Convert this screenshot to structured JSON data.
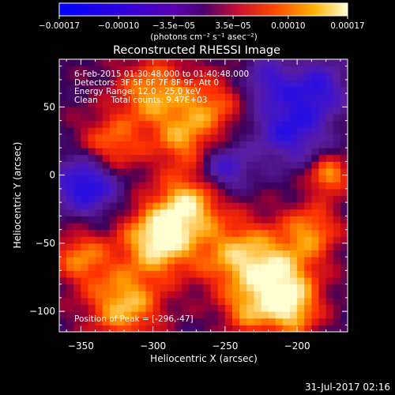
{
  "chart_data": {
    "type": "heatmap",
    "title": "Reconstructed RHESSI Image",
    "xlabel": "Heliocentric X (arcsec)",
    "ylabel": "Heliocentric Y (arcsec)",
    "xlim": [
      -365,
      -165
    ],
    "ylim": [
      -115,
      85
    ],
    "x_ticks": [
      -350,
      -300,
      -250,
      -200
    ],
    "x_tick_labels": [
      "−350",
      "−300",
      "−250",
      "−200"
    ],
    "y_ticks": [
      -100,
      -50,
      0,
      50
    ],
    "y_tick_labels": [
      "−100",
      "−50",
      "0",
      "50"
    ],
    "colorbar": {
      "min": -0.00017,
      "max": 0.00017,
      "ticks": [
        -0.00017,
        -0.0001,
        -3.5e-05,
        3.5e-05,
        0.0001,
        0.00017
      ],
      "tick_labels": [
        "−0.00017",
        "−0.00010",
        "−3.5e−05",
        "3.5e−05",
        "0.00010",
        "0.00017"
      ],
      "unit_label": "(photons cm⁻² s⁻¹ asec⁻²)"
    },
    "info_lines": [
      "6-Feb-2015 01:30:48.000 to 01:40:48.000",
      "Detectors: 3F 5F 6F 7F 8F 9F, Att 0",
      "Energy Range: 12.0 - 25.0 keV",
      "Clean     Total counts: 9.47E+03"
    ],
    "peak_label": "Position of Peak = [-296,-47]",
    "peak": [
      -296,
      -47
    ],
    "timestamp": "31-Jul-2017 02:16",
    "grid": false
  },
  "colors": {
    "background": "#000000",
    "text": "#ffffff",
    "axes": "#ffffff"
  }
}
